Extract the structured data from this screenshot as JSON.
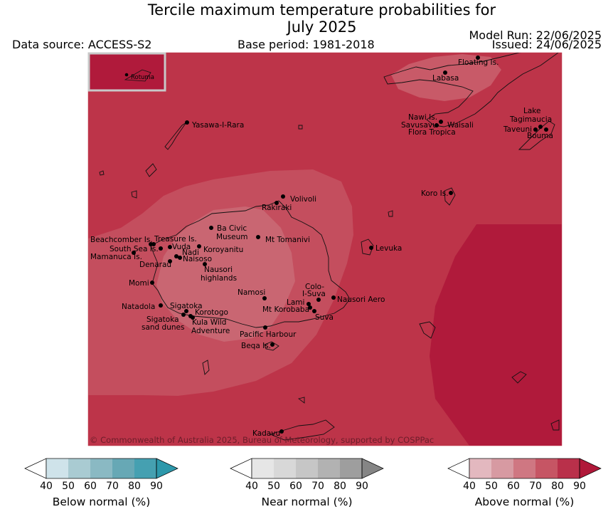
{
  "title": {
    "line1": "Tercile maximum temperature probabilities for",
    "line2": "July 2025"
  },
  "data_source": "Data source: ACCESS-S2",
  "base_period": "Base period: 1981-2018",
  "model_run": "Model Run: 22/06/2025",
  "issued": "Issued: 24/06/2025",
  "map": {
    "inset_label": "Rotuma",
    "copyright": "© Commonwealth of Australia 2025, Bureau of Meteorology, supported by COSPPac",
    "places": [
      "Floating Is.",
      "Labasa",
      "Yasawa-I-Rara",
      "Nawi Is.",
      "Savusavu",
      "Waisali",
      "Flora Tropica",
      "Lake",
      "Tagimaucia",
      "Taveuni",
      "Bouma",
      "Volivoli",
      "Rakiraki",
      "Koro Is.",
      "Ba Civic",
      "Museum",
      "Mt Tomanivi",
      "Beachcomber Is.",
      "Treasure Is.",
      "South Sea Is.",
      "Vuda",
      "Nadi",
      "Mamanuca Is.",
      "Naisoso",
      "Koroyanitu",
      "Denarau",
      "Levuka",
      "Nausori",
      "highlands",
      "Momi",
      "Namosi",
      "Colo-",
      "I-Suva",
      "Lami",
      "Nausori Aero",
      "Mt Korobaba",
      "Suva",
      "Natadola",
      "Sigatoka",
      "Korotogo",
      "Sigatoka",
      "sand dunes",
      "Kula Wild",
      "Adventure",
      "Pacific Harbour",
      "Beqa Is.",
      "Kadavu"
    ]
  },
  "colorbars": [
    {
      "label": "Below normal (%)",
      "ticks": [
        "40",
        "50",
        "60",
        "70",
        "80",
        "90"
      ],
      "colors": [
        "#ffffff",
        "#cfe3ea",
        "#a9cbd2",
        "#8ab9c3",
        "#67a8b5",
        "#45a0b1",
        "#2d98ab"
      ]
    },
    {
      "label": "Near normal (%)",
      "ticks": [
        "40",
        "50",
        "60",
        "70",
        "80",
        "90"
      ],
      "colors": [
        "#ffffff",
        "#e6e6e6",
        "#d8d8d8",
        "#c6c6c6",
        "#b2b2b2",
        "#9e9e9e",
        "#858585"
      ]
    },
    {
      "label": "Above normal (%)",
      "ticks": [
        "40",
        "50",
        "60",
        "70",
        "80",
        "90"
      ],
      "colors": [
        "#ffffff",
        "#e3b8bf",
        "#d79aa2",
        "#cf7782",
        "#c65564",
        "#b9304a",
        "#b01839"
      ]
    }
  ],
  "colors": {
    "above_80_90": "#bd3449",
    "above_90_plus": "#b01a3b",
    "above_70_80": "#c85a68"
  }
}
